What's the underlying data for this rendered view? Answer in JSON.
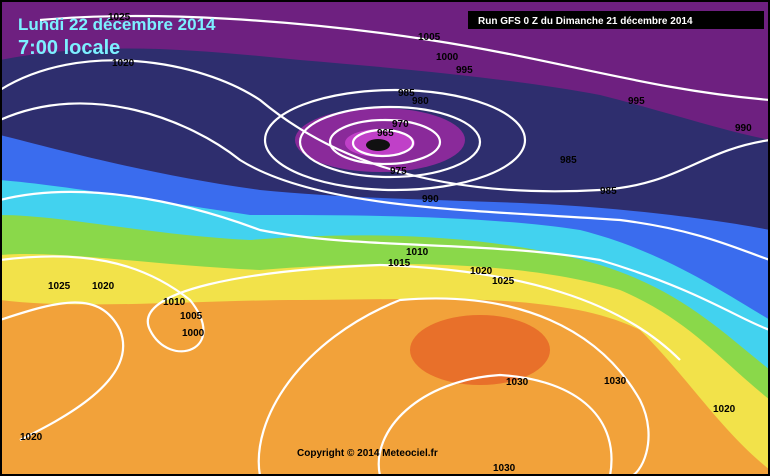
{
  "header": {
    "date": "Lundi 22 décembre 2014",
    "time": "7:00 locale"
  },
  "run": "Run GFS 0 Z du Dimanche 21 décembre 2014",
  "copyright": "Copyright © 2014 Meteociel.fr",
  "isobar_labels": [
    1025,
    1020,
    1005,
    1000,
    995,
    985,
    980,
    970,
    965,
    975,
    990,
    995,
    990,
    985,
    985,
    1010,
    1015,
    1020,
    1025,
    1025,
    1020,
    1010,
    1005,
    1000,
    1030,
    1030,
    1020,
    1020,
    1030
  ]
}
